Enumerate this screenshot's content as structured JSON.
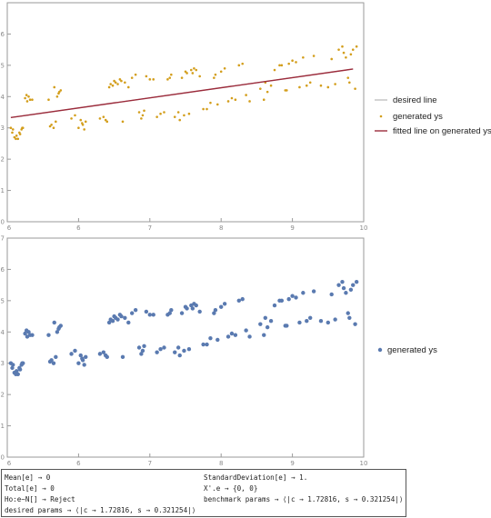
{
  "chart_data": [
    {
      "type": "scatter",
      "xlim": [
        5,
        10
      ],
      "ylim": [
        0,
        7
      ],
      "x_ticks": [
        "6",
        "7",
        "8",
        "9",
        "10"
      ],
      "y_ticks": [
        "0",
        "1",
        "2",
        "3",
        "4",
        "5",
        "6"
      ],
      "x_minor_tick_labels": [
        "6",
        "8"
      ],
      "y_minor_tick_labels": [
        "0",
        "1",
        "2",
        "3",
        "4",
        "5",
        "6"
      ],
      "grid": false,
      "legend_position": "right",
      "series": [
        {
          "name": "desired line",
          "kind": "line",
          "x": [
            5.05,
            9.85
          ],
          "y": [
            3.33,
            4.88
          ],
          "color": "#aaaaaa"
        },
        {
          "name": "generated ys",
          "kind": "points",
          "color": "#d39e1c",
          "x": [
            5.05,
            5.07,
            5.1,
            5.12,
            5.15,
            5.18,
            5.2,
            5.22,
            5.25,
            5.28,
            5.3,
            5.32,
            5.35,
            5.6,
            5.62,
            5.65,
            5.68,
            5.7,
            5.72,
            5.75,
            5.9,
            6.0,
            6.05,
            6.08,
            6.1,
            6.35,
            6.4,
            6.45,
            6.5,
            6.52,
            6.55,
            6.58,
            6.6,
            6.65,
            6.7,
            6.85,
            6.9,
            6.95,
            7.0,
            7.1,
            7.15,
            7.25,
            7.3,
            7.35,
            7.4,
            7.45,
            7.5,
            7.55,
            7.6,
            7.62,
            7.65,
            7.7,
            7.8,
            7.9,
            7.95,
            8.0,
            8.05,
            8.1,
            8.2,
            8.25,
            8.3,
            8.4,
            8.6,
            8.65,
            8.7,
            8.75,
            8.85,
            8.9,
            8.95,
            9.0,
            9.05,
            9.1,
            9.2,
            9.3,
            9.5,
            9.6,
            9.7,
            9.72,
            9.75,
            9.78,
            9.8,
            9.85,
            9.88,
            9.9,
            5.08,
            5.13,
            5.17,
            5.21,
            5.27,
            5.58,
            5.66,
            5.73,
            5.95,
            6.03,
            6.06,
            6.3,
            6.38,
            6.43,
            6.48,
            6.62,
            6.75,
            6.8,
            6.88,
            6.92,
            7.05,
            7.2,
            7.28,
            7.42,
            7.48,
            7.52,
            7.58,
            7.75,
            7.85,
            7.92,
            8.15,
            8.35,
            8.55,
            8.62,
            8.82,
            8.92,
            9.15,
            9.25,
            9.4,
            9.55,
            9.65,
            9.82
          ],
          "y": [
            3.0,
            2.85,
            2.7,
            2.65,
            2.65,
            2.8,
            2.95,
            3.0,
            3.95,
            3.85,
            4.0,
            3.9,
            3.9,
            3.05,
            3.1,
            3.0,
            3.2,
            4.0,
            4.1,
            4.2,
            3.3,
            3.0,
            3.15,
            2.95,
            3.2,
            3.35,
            3.2,
            4.4,
            4.5,
            4.45,
            4.4,
            4.55,
            4.5,
            4.45,
            4.3,
            3.5,
            3.4,
            4.65,
            4.55,
            3.35,
            3.45,
            4.55,
            4.7,
            3.35,
            3.5,
            4.6,
            4.8,
            3.45,
            4.75,
            4.9,
            4.85,
            4.65,
            3.6,
            4.6,
            3.75,
            4.8,
            4.9,
            3.85,
            3.9,
            5.0,
            5.05,
            3.85,
            3.9,
            4.15,
            4.35,
            4.85,
            5.0,
            4.2,
            5.05,
            5.15,
            5.1,
            4.3,
            4.35,
            5.3,
            4.3,
            4.4,
            5.6,
            5.4,
            5.25,
            4.6,
            4.45,
            5.5,
            4.25,
            5.6,
            2.95,
            2.75,
            2.85,
            3.0,
            4.05,
            3.9,
            4.3,
            4.15,
            3.4,
            3.25,
            3.1,
            3.3,
            3.25,
            4.3,
            4.35,
            3.2,
            4.6,
            4.7,
            3.3,
            3.55,
            4.55,
            3.5,
            4.6,
            3.25,
            3.4,
            4.75,
            4.85,
            3.6,
            3.8,
            4.7,
            3.95,
            4.05,
            4.25,
            4.45,
            5.0,
            4.2,
            5.25,
            4.45,
            4.35,
            5.2,
            5.5,
            5.35
          ],
          "point_radius": 1.3
        },
        {
          "name": "fitted line on generated ys",
          "kind": "line",
          "x": [
            5.05,
            9.85
          ],
          "y": [
            3.33,
            4.88
          ],
          "color": "#9b2b3b"
        }
      ]
    },
    {
      "type": "scatter",
      "xlim": [
        5,
        10
      ],
      "ylim": [
        0,
        7
      ],
      "x_ticks": [
        "6",
        "7",
        "8",
        "9",
        "10"
      ],
      "y_ticks": [
        "0",
        "1",
        "2",
        "3",
        "4",
        "5",
        "6",
        "7"
      ],
      "x_minor_tick_labels": [
        "6",
        "8"
      ],
      "y_minor_tick_labels": [
        "0",
        "1",
        "2",
        "3",
        "4",
        "5",
        "6",
        "7"
      ],
      "grid": false,
      "legend_position": "right",
      "series": [
        {
          "name": "generated ys",
          "kind": "points",
          "color": "#5a7ab0",
          "point_radius": 2.2,
          "same_points_as": 0
        }
      ]
    }
  ],
  "output": {
    "lines_left": [
      "Mean[e] → 0",
      "Total[e] → 0",
      "Ho:e~N[] → Reject",
      "desired params → ⟨|c → 1.72816, s → 0.321254|⟩"
    ],
    "lines_right": [
      "StandardDeviation[e] → 1.",
      "X'.e → {0, 0}",
      "benchmark params → ⟨|c → 1.72816, s → 0.321254|⟩"
    ]
  }
}
